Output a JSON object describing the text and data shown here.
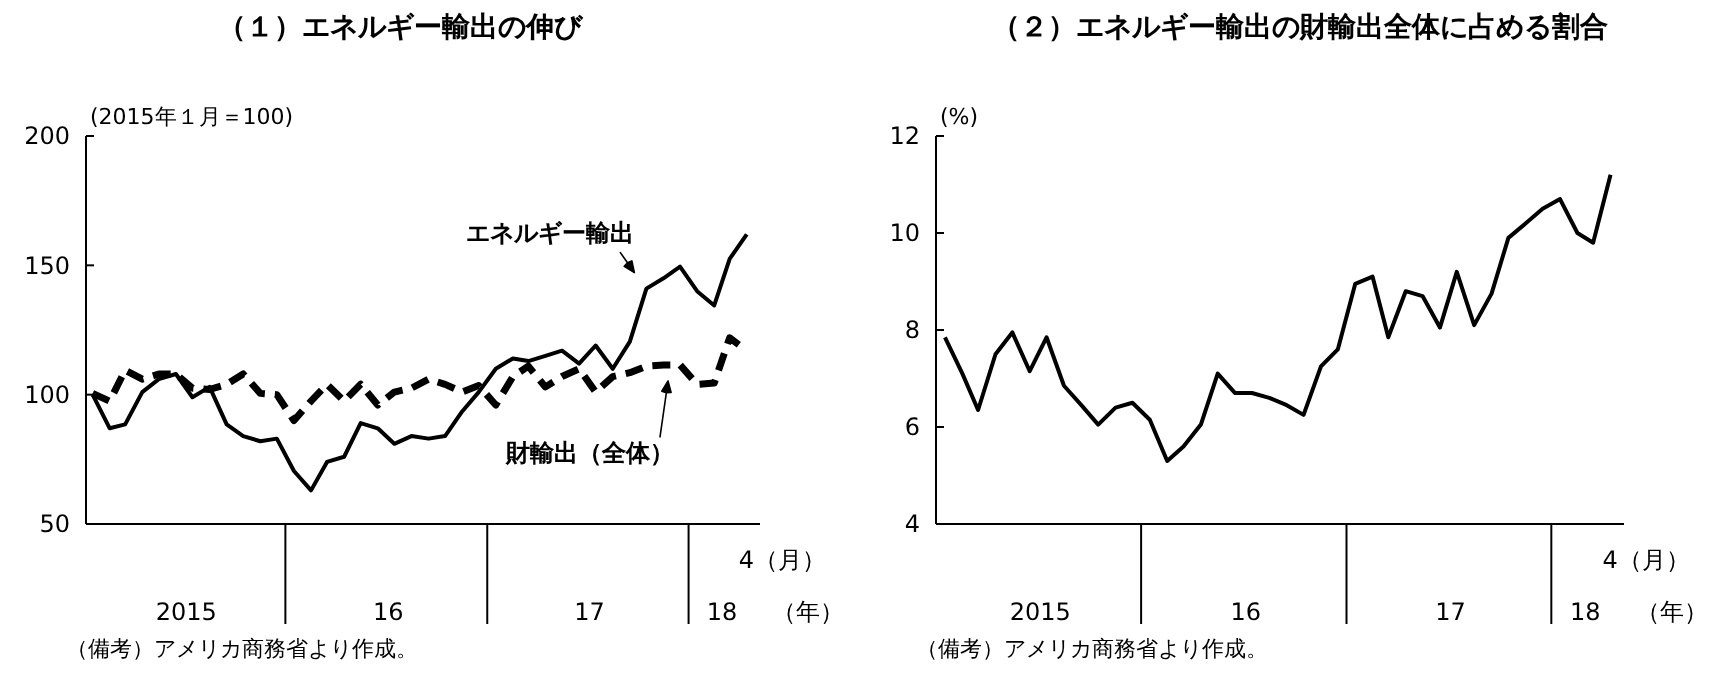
{
  "chart_data": [
    {
      "type": "line",
      "title": "（１）エネルギー輸出の伸び",
      "ylabel": "(2015年１月＝100)",
      "ylim": [
        50,
        200
      ],
      "yticks": [
        50,
        100,
        150,
        200
      ],
      "xlim": [
        "2014-12-20",
        "2018-04-25"
      ],
      "xticks": [
        {
          "value": "2015-06-20",
          "label": "2015"
        },
        {
          "value": "2016-06-20",
          "label": "16"
        },
        {
          "value": "2017-06-20",
          "label": "17"
        },
        {
          "value": "2018-02-15",
          "label": "18"
        }
      ],
      "x": [
        "2015-01",
        "2015-02",
        "2015-03",
        "2015-04",
        "2015-05",
        "2015-06",
        "2015-07",
        "2015-08",
        "2015-09",
        "2015-10",
        "2015-11",
        "2015-12",
        "2016-01",
        "2016-02",
        "2016-03",
        "2016-04",
        "2016-05",
        "2016-06",
        "2016-07",
        "2016-08",
        "2016-09",
        "2016-10",
        "2016-11",
        "2016-12",
        "2017-01",
        "2017-02",
        "2017-03",
        "2017-04",
        "2017-05",
        "2017-06",
        "2017-07",
        "2017-08",
        "2017-09",
        "2017-10",
        "2017-11",
        "2017-12",
        "2018-01",
        "2018-02",
        "2018-03",
        "2018-04"
      ],
      "series": [
        {
          "name": "エネルギー輸出",
          "color": "#000000",
          "line_style": "solid",
          "values": [
            100,
            87,
            88.5,
            101,
            106,
            108,
            99,
            103,
            88.5,
            84,
            82,
            83,
            70.5,
            63,
            74,
            76,
            89,
            87,
            81,
            84,
            83,
            84,
            93.5,
            101,
            110,
            114,
            113,
            115,
            117,
            112,
            119,
            110,
            120.5,
            141,
            145,
            149.5,
            140,
            134.5,
            152.5,
            162
          ]
        },
        {
          "name": "財輸出（全体）",
          "color": "#000000",
          "line_style": "dashed",
          "values": [
            100.5,
            97.5,
            109.5,
            106,
            108,
            108,
            102.5,
            102,
            104,
            108,
            100.5,
            100,
            90,
            97.5,
            104,
            97.5,
            104,
            96,
            101,
            102.5,
            106,
            104,
            101,
            103.5,
            96,
            107,
            111,
            103,
            107,
            110,
            101,
            107,
            108.5,
            111,
            111.5,
            111.5,
            104,
            104.5,
            122,
            117
          ]
        }
      ],
      "grid": false,
      "marker": "none",
      "annotations": [
        "4（月）",
        "（年）",
        "（備考）アメリカ商務省より作成。"
      ]
    },
    {
      "type": "line",
      "title": "（２）エネルギー輸出の財輸出全体に占める割合",
      "ylabel": "(%)",
      "ylim": [
        4,
        12
      ],
      "yticks": [
        4,
        6,
        8,
        10,
        12
      ],
      "xlim": [
        "2014-12-16",
        "2018-04-25"
      ],
      "xticks": [
        {
          "value": "2015-06-20",
          "label": "2015"
        },
        {
          "value": "2016-06-20",
          "label": "16"
        },
        {
          "value": "2017-06-20",
          "label": "17"
        },
        {
          "value": "2018-02-15",
          "label": "18"
        }
      ],
      "x": [
        "2015-01",
        "2015-02",
        "2015-03",
        "2015-04",
        "2015-05",
        "2015-06",
        "2015-07",
        "2015-08",
        "2015-09",
        "2015-10",
        "2015-11",
        "2015-12",
        "2016-01",
        "2016-02",
        "2016-03",
        "2016-04",
        "2016-05",
        "2016-06",
        "2016-07",
        "2016-08",
        "2016-09",
        "2016-10",
        "2016-11",
        "2016-12",
        "2017-01",
        "2017-02",
        "2017-03",
        "2017-04",
        "2017-05",
        "2017-06",
        "2017-07",
        "2017-08",
        "2017-09",
        "2017-10",
        "2017-11",
        "2017-12",
        "2018-01",
        "2018-02",
        "2018-03",
        "2018-04"
      ],
      "series": [
        {
          "color": "#000000",
          "line_style": "solid",
          "values": [
            7.85,
            7.1,
            6.35,
            7.5,
            7.95,
            7.15,
            7.85,
            6.85,
            6.45,
            6.05,
            6.4,
            6.5,
            6.15,
            5.3,
            5.6,
            6.05,
            7.1,
            6.7,
            6.7,
            6.6,
            6.45,
            6.25,
            7.25,
            7.6,
            8.95,
            9.1,
            7.85,
            8.8,
            8.7,
            8.05,
            9.2,
            8.1,
            8.75,
            9.9,
            10.2,
            10.5,
            10.7,
            10.0,
            9.8,
            11.2
          ]
        }
      ],
      "grid": false,
      "marker": "none",
      "annotations": [
        "4（月）",
        "（年）",
        "（備考）アメリカ商務省より作成。"
      ]
    }
  ]
}
